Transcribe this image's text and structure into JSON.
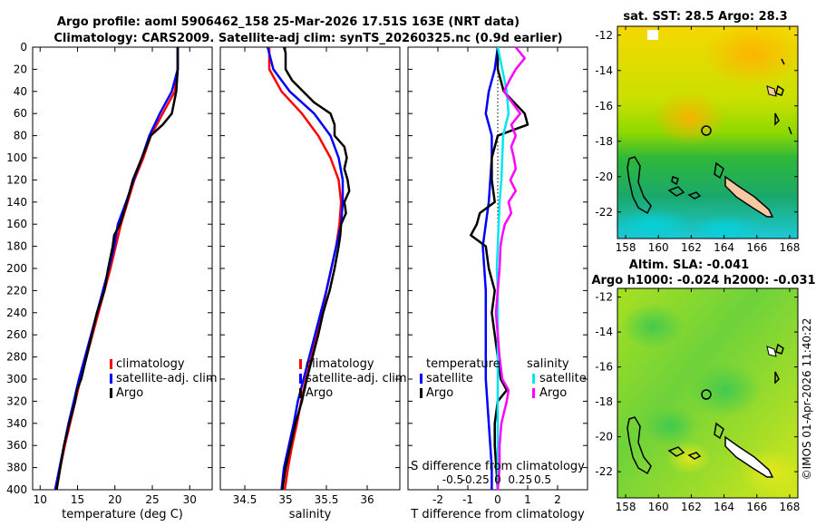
{
  "title": {
    "line1": "Argo profile: aoml 5906462_158 25-Mar-2026 17.51S 163E (NRT data)",
    "line2": "Climatology: CARS2009. Satellite-adj clim: synTS_20260325.nc (0.9d earlier)"
  },
  "colors": {
    "climatology": "#ff0000",
    "satellite": "#0000ff",
    "argo": "#000000",
    "sal_satellite": "#00e5ee",
    "sal_argo": "#ff00ff"
  },
  "depth_ticks": [
    "0",
    "20",
    "40",
    "60",
    "80",
    "100",
    "120",
    "140",
    "160",
    "180",
    "200",
    "220",
    "240",
    "260",
    "280",
    "300",
    "320",
    "340",
    "360",
    "380",
    "400"
  ],
  "chart_data": [
    {
      "type": "line",
      "title": "",
      "xlabel": "temperature (deg C)",
      "ylabel": "depth",
      "xlim": [
        9,
        33
      ],
      "ylim": [
        400,
        0
      ],
      "x_ticks": [
        "10",
        "15",
        "20",
        "25",
        "30"
      ],
      "x_tick_values": [
        10,
        15,
        20,
        25,
        30
      ],
      "legend": [
        "climatology",
        "satellite-adj. clim",
        "Argo"
      ],
      "series": [
        {
          "name": "climatology",
          "color": "#ff0000",
          "depth": [
            0,
            20,
            40,
            60,
            80,
            100,
            120,
            140,
            160,
            180,
            200,
            220,
            240,
            260,
            280,
            300,
            320,
            340,
            360,
            380,
            400
          ],
          "values": [
            28.4,
            28.4,
            28.0,
            26.4,
            24.8,
            23.8,
            22.6,
            21.7,
            20.8,
            20.1,
            19.4,
            18.6,
            17.8,
            17.0,
            16.2,
            15.4,
            14.7,
            14.0,
            13.3,
            12.7,
            12.2
          ]
        },
        {
          "name": "satellite-adj. clim",
          "color": "#0000ff",
          "depth": [
            0,
            20,
            40,
            60,
            80,
            100,
            120,
            140,
            160,
            180,
            200,
            220,
            240,
            260,
            280,
            300,
            320,
            340,
            360,
            380,
            400
          ],
          "values": [
            28.4,
            28.4,
            27.6,
            26.0,
            24.6,
            23.6,
            22.5,
            21.5,
            20.4,
            19.9,
            19.2,
            18.4,
            17.6,
            16.8,
            16.0,
            15.2,
            14.5,
            13.8,
            13.2,
            12.6,
            12.0
          ]
        },
        {
          "name": "Argo",
          "color": "#000000",
          "depth": [
            0,
            20,
            40,
            60,
            70,
            80,
            100,
            120,
            140,
            160,
            170,
            180,
            200,
            220,
            240,
            260,
            280,
            300,
            310,
            320,
            340,
            360,
            380,
            400
          ],
          "values": [
            28.4,
            28.4,
            28.2,
            27.6,
            26.4,
            24.8,
            23.6,
            22.4,
            21.6,
            20.7,
            19.9,
            19.7,
            19.1,
            18.6,
            17.6,
            16.9,
            16.2,
            15.5,
            14.9,
            14.7,
            13.9,
            13.2,
            12.7,
            12.2
          ]
        }
      ]
    },
    {
      "type": "line",
      "title": "",
      "xlabel": "salinity",
      "ylabel": "",
      "xlim": [
        34.2,
        36.4
      ],
      "ylim": [
        400,
        0
      ],
      "x_ticks": [
        "34.5",
        "35",
        "35.5",
        "36"
      ],
      "x_tick_values": [
        34.5,
        35,
        35.5,
        36
      ],
      "legend": [
        "climatology",
        "satellite-adj. clim",
        "Argo"
      ],
      "series": [
        {
          "name": "climatology",
          "color": "#ff0000",
          "depth": [
            0,
            20,
            40,
            60,
            80,
            100,
            120,
            140,
            160,
            180,
            200,
            220,
            240,
            260,
            280,
            300,
            320,
            340,
            360,
            380,
            400
          ],
          "values": [
            34.8,
            34.8,
            34.95,
            35.2,
            35.4,
            35.55,
            35.65,
            35.68,
            35.66,
            35.62,
            35.56,
            35.5,
            35.45,
            35.38,
            35.32,
            35.25,
            35.19,
            35.14,
            35.08,
            35.03,
            34.99
          ]
        },
        {
          "name": "satellite-adj. clim",
          "color": "#0000ff",
          "depth": [
            0,
            20,
            40,
            60,
            80,
            100,
            120,
            140,
            160,
            180,
            200,
            220,
            240,
            260,
            280,
            300,
            320,
            340,
            360,
            380,
            400
          ],
          "values": [
            34.78,
            34.85,
            35.05,
            35.35,
            35.55,
            35.65,
            35.7,
            35.7,
            35.68,
            35.62,
            35.56,
            35.5,
            35.43,
            35.36,
            35.29,
            35.22,
            35.15,
            35.1,
            35.04,
            34.98,
            34.95
          ]
        },
        {
          "name": "Argo",
          "color": "#000000",
          "depth": [
            0,
            5,
            20,
            30,
            50,
            60,
            70,
            80,
            90,
            100,
            110,
            120,
            130,
            140,
            150,
            160,
            170,
            180,
            200,
            220,
            240,
            260,
            280,
            300,
            320,
            340,
            360,
            380,
            400
          ],
          "values": [
            34.98,
            35.0,
            35.0,
            35.08,
            35.35,
            35.55,
            35.6,
            35.6,
            35.72,
            35.75,
            35.72,
            35.76,
            35.78,
            35.72,
            35.74,
            35.68,
            35.67,
            35.65,
            35.6,
            35.54,
            35.46,
            35.4,
            35.33,
            35.26,
            35.2,
            35.12,
            35.06,
            35.0,
            34.96
          ]
        }
      ]
    },
    {
      "type": "line",
      "title": "",
      "xlabel": "T difference from climatology",
      "ylabel": "",
      "xlim": [
        -3,
        3
      ],
      "ylim": [
        400,
        0
      ],
      "x_ticks": [
        "-2",
        "-1",
        "0",
        "1",
        "2"
      ],
      "x_tick_values": [
        -2,
        -1,
        0,
        1,
        2
      ],
      "secondary_axis": {
        "label": "S difference from climatology",
        "ticks": [
          "-0.5",
          "-0.25",
          "0",
          "0.25",
          "0.5"
        ],
        "tick_values": [
          -0.5,
          -0.25,
          0,
          0.25,
          0.5
        ],
        "xlim": [
          -1.0,
          1.0
        ]
      },
      "legend_titles": [
        "temperature",
        "salinity"
      ],
      "legend": [
        "satellite",
        "Argo",
        "satellite",
        "Argo"
      ],
      "series": [
        {
          "name": "T satellite",
          "color": "#0000ff",
          "axis": "T",
          "depth": [
            0,
            20,
            40,
            60,
            80,
            100,
            140,
            180,
            220,
            260,
            300,
            340,
            380,
            400
          ],
          "values": [
            0.0,
            -0.1,
            -0.3,
            -0.4,
            -0.2,
            -0.2,
            -0.3,
            -0.5,
            -0.4,
            -0.4,
            -0.4,
            -0.3,
            -0.2,
            -0.2
          ]
        },
        {
          "name": "T Argo",
          "color": "#000000",
          "axis": "T",
          "depth": [
            0,
            20,
            40,
            60,
            70,
            80,
            100,
            120,
            140,
            150,
            160,
            170,
            180,
            200,
            220,
            240,
            260,
            280,
            300,
            310,
            320,
            340,
            360,
            380,
            400
          ],
          "values": [
            0.0,
            0.0,
            0.2,
            0.9,
            1.0,
            0.0,
            -0.2,
            -0.2,
            -0.1,
            -0.6,
            -0.7,
            -0.9,
            -0.4,
            -0.3,
            -0.1,
            -0.2,
            -0.1,
            0.0,
            0.1,
            0.3,
            0.0,
            -0.1,
            -0.1,
            -0.05,
            0.0
          ]
        },
        {
          "name": "S satellite",
          "color": "#00e5ee",
          "axis": "S",
          "depth": [
            0,
            20,
            40,
            60,
            80,
            100,
            120,
            140,
            160,
            180,
            200,
            220,
            240,
            260,
            280,
            300,
            320,
            340,
            360,
            380,
            400
          ],
          "values": [
            0.0,
            0.05,
            0.1,
            0.12,
            0.06,
            0.05,
            0.04,
            0.02,
            0.01,
            0.0,
            -0.01,
            0.0,
            0.0,
            0.0,
            0.0,
            0.0,
            0.0,
            0.0,
            0.0,
            0.0,
            0.0
          ]
        },
        {
          "name": "S Argo",
          "color": "#ff00ff",
          "axis": "S",
          "depth": [
            0,
            10,
            20,
            30,
            40,
            50,
            60,
            70,
            80,
            90,
            100,
            110,
            120,
            130,
            140,
            150,
            160,
            170,
            180,
            200,
            220,
            240,
            260,
            280,
            300,
            310,
            320,
            340,
            360,
            380,
            400
          ],
          "values": [
            0.2,
            0.3,
            0.2,
            0.13,
            0.07,
            0.16,
            0.25,
            0.15,
            0.2,
            0.15,
            0.18,
            0.2,
            0.14,
            0.2,
            0.12,
            0.15,
            0.08,
            0.05,
            0.03,
            0.02,
            0.0,
            -0.02,
            0.0,
            0.02,
            0.05,
            0.12,
            0.1,
            0.04,
            0.02,
            0.02,
            0.0
          ]
        }
      ]
    },
    {
      "type": "heatmap",
      "title": "sat. SST: 28.5 Argo: 28.3",
      "xlabel": "",
      "ylabel": "",
      "xlim": [
        157.5,
        168.5
      ],
      "ylim": [
        -23.5,
        -11.5
      ],
      "x_ticks": [
        "158",
        "160",
        "162",
        "164",
        "166",
        "168"
      ],
      "y_ticks": [
        "-12",
        "-14",
        "-16",
        "-18",
        "-20",
        "-22"
      ],
      "argo_position": {
        "lon": 163.0,
        "lat": -17.51
      }
    },
    {
      "type": "heatmap",
      "title": "Altim. SLA: -0.041",
      "subtitle": "Argo h1000: -0.024 h2000: -0.031",
      "xlabel": "",
      "ylabel": "",
      "xlim": [
        157.5,
        168.5
      ],
      "ylim": [
        -23.5,
        -11.5
      ],
      "x_ticks": [
        "158",
        "160",
        "162",
        "164",
        "166",
        "168"
      ],
      "y_ticks": [
        "-12",
        "-14",
        "-16",
        "-18",
        "-20",
        "-22"
      ],
      "argo_position": {
        "lon": 163.0,
        "lat": -17.51
      }
    }
  ],
  "legends": {
    "temp_panel": [
      "climatology",
      "satellite-adj. clim",
      "Argo"
    ],
    "sal_panel": [
      "climatology",
      "satellite-adj. clim",
      "Argo"
    ],
    "diff_panel": {
      "temp_title": "temperature",
      "sal_title": "salinity",
      "items": [
        "satellite",
        "Argo",
        "satellite",
        "Argo"
      ]
    }
  },
  "watermark": "©IMOS 01-Apr-2026 11:40:22"
}
